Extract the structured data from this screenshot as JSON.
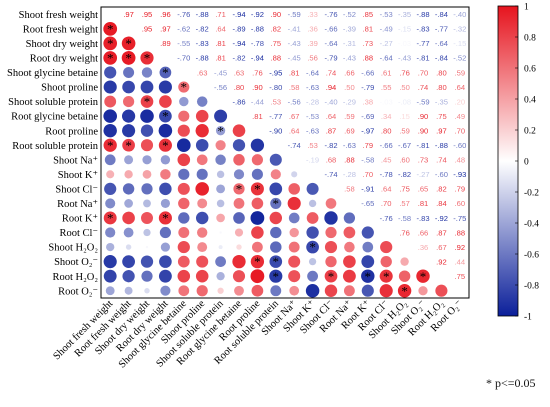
{
  "chart_data": {
    "type": "heatmap",
    "subtype": "correlation-matrix (lower: circles, upper: coefficients)",
    "variables": [
      "Shoot fresh weight",
      "Root fresh weight",
      "Shoot dry weight",
      "Root dry weight",
      "Shoot glycine betaine",
      "Shoot proline",
      "Shoot soluble protein",
      "Root glycine betaine",
      "Root proline",
      "Root soluble protein",
      "Shoot Na⁺",
      "Shoot K⁺",
      "Shoot Cl⁻",
      "Root Na⁺",
      "Root K⁺",
      "Root Cl⁻",
      "Shoot H₂O₂",
      "Shoot O₂⁻",
      "Root H₂O₂",
      "Root O₂⁻"
    ],
    "upper_values": [
      [
        0.97,
        0.95,
        0.96,
        -0.76,
        -0.88,
        0.71,
        -0.94,
        -0.92,
        0.9,
        -0.59,
        0.33,
        -0.76,
        -0.52,
        0.85,
        -0.53,
        -0.35,
        -0.88,
        -0.84,
        -0.4
      ],
      [
        0.95,
        0.97,
        -0.62,
        -0.82,
        0.64,
        -0.89,
        -0.88,
        0.82,
        -0.41,
        0.36,
        -0.66,
        -0.39,
        0.81,
        -0.49,
        -0.15,
        -0.83,
        -0.77,
        -0.32
      ],
      [
        0.89,
        -0.55,
        -0.83,
        0.81,
        -0.94,
        -0.78,
        0.75,
        -0.43,
        0.39,
        -0.64,
        -0.31,
        0.73,
        -0.27,
        -0.03,
        -0.77,
        -0.64,
        -0.15
      ],
      [
        -0.7,
        -0.88,
        0.81,
        -0.82,
        -0.94,
        0.88,
        -0.45,
        0.56,
        -0.79,
        -0.43,
        0.88,
        -0.64,
        -0.43,
        -0.81,
        -0.84,
        -0.52
      ],
      [
        0.63,
        -0.45,
        0.63,
        0.76,
        -0.95,
        0.81,
        -0.64,
        0.74,
        0.66,
        -0.66,
        0.61,
        0.76,
        0.7,
        0.8,
        0.59
      ],
      [
        -0.56,
        0.8,
        0.9,
        -0.8,
        0.58,
        -0.63,
        0.94,
        0.5,
        -0.79,
        0.55,
        0.5,
        0.74,
        0.8,
        0.64
      ],
      [
        -0.86,
        -0.44,
        0.53,
        -0.56,
        -0.28,
        -0.4,
        -0.29,
        0.38,
        -0.03,
        -0.08,
        -0.59,
        -0.35,
        0.2
      ],
      [
        0.81,
        -0.77,
        0.67,
        -0.53,
        0.64,
        0.59,
        -0.69,
        0.34,
        0.15,
        0.9,
        0.75,
        0.49
      ],
      [
        -0.9,
        0.64,
        -0.63,
        0.87,
        0.69,
        -0.97,
        0.8,
        0.59,
        0.9,
        0.97,
        0.7
      ],
      [
        -0.74,
        0.53,
        -0.82,
        -0.63,
        0.79,
        -0.66,
        -0.67,
        -0.81,
        -0.88,
        -0.6
      ],
      [
        -0.19,
        0.68,
        0.88,
        -0.58,
        0.45,
        0.6,
        0.73,
        0.74,
        0.48
      ],
      [
        -0.74,
        -0.28,
        0.7,
        -0.78,
        -0.82,
        -0.27,
        -0.6,
        -0.93
      ],
      [
        0.58,
        -0.91,
        0.64,
        0.75,
        0.65,
        0.82,
        0.79
      ],
      [
        -0.65,
        0.7,
        0.57,
        0.81,
        0.84,
        0.6
      ],
      [
        -0.76,
        -0.58,
        -0.83,
        -0.92,
        -0.75
      ],
      [
        0.76,
        0.66,
        0.87,
        0.88
      ],
      [
        0.36,
        0.67,
        0.92
      ],
      [
        0.92,
        0.44
      ],
      [
        0.75
      ]
    ],
    "significant_marks": [
      [
        1,
        0
      ],
      [
        2,
        0
      ],
      [
        2,
        1
      ],
      [
        3,
        0
      ],
      [
        3,
        1
      ],
      [
        3,
        2
      ],
      [
        4,
        3
      ],
      [
        5,
        4
      ],
      [
        6,
        2
      ],
      [
        7,
        3
      ],
      [
        8,
        6
      ],
      [
        9,
        0
      ],
      [
        9,
        1
      ],
      [
        9,
        3
      ],
      [
        12,
        7
      ],
      [
        12,
        8
      ],
      [
        13,
        9
      ],
      [
        14,
        0
      ],
      [
        14,
        3
      ],
      [
        16,
        11
      ],
      [
        17,
        8
      ],
      [
        17,
        9
      ],
      [
        18,
        9
      ],
      [
        18,
        12
      ],
      [
        18,
        14
      ],
      [
        18,
        15
      ],
      [
        18,
        17
      ],
      [
        19,
        16
      ]
    ],
    "colorbar": {
      "min": -1,
      "max": 1,
      "ticks": [
        "1",
        "0.8",
        "0.6",
        "0.4",
        "0.2",
        "0",
        "-0.2",
        "-0.4",
        "-0.6",
        "-0.8",
        "-1"
      ]
    },
    "colors": {
      "positive": "#e6141e",
      "negative": "#0b1f9a",
      "neutral": "#ffffff"
    },
    "significance_note": "* p<=0.05"
  }
}
